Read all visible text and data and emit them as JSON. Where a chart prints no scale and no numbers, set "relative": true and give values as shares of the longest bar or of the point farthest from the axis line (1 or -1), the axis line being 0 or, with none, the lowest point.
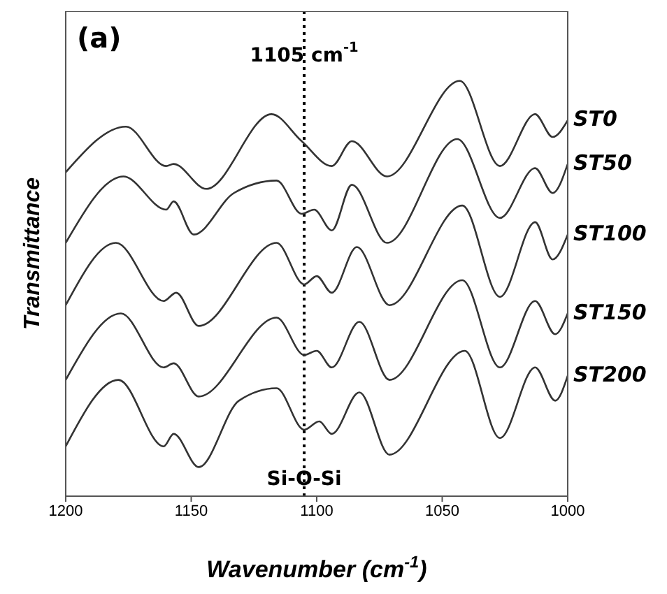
{
  "chart_data": {
    "type": "line",
    "title": "(a)",
    "xlabel": "Wavenumber (cm$^{-1}$)",
    "ylabel": "Transmittance",
    "relative": true,
    "tick_labels": "x",
    "xlim": [
      1200,
      1000
    ],
    "xticks": [
      1200,
      1150,
      1100,
      1050,
      1000
    ],
    "marker": "none",
    "line_style": "solid",
    "series": [
      {
        "name": "ST0",
        "color": "#333333",
        "x": [
          1200,
          1176,
          1160,
          1157,
          1144,
          1118,
          1106,
          1094,
          1086,
          1072,
          1043,
          1027,
          1013,
          1006,
          1000
        ],
        "values": [
          0.78,
          0.89,
          0.795,
          0.8,
          0.74,
          0.92,
          0.855,
          0.795,
          0.855,
          0.77,
          1.0,
          0.795,
          0.92,
          0.865,
          0.905
        ]
      },
      {
        "name": "ST50",
        "color": "#333333",
        "x": [
          1200,
          1177,
          1160,
          1157,
          1149,
          1133,
          1116,
          1106,
          1101,
          1094,
          1086,
          1072,
          1044,
          1027,
          1013,
          1006,
          1000
        ],
        "values": [
          0.61,
          0.77,
          0.69,
          0.71,
          0.63,
          0.73,
          0.76,
          0.68,
          0.69,
          0.64,
          0.75,
          0.61,
          0.86,
          0.67,
          0.79,
          0.73,
          0.8
        ]
      },
      {
        "name": "ST100",
        "color": "#333333",
        "x": [
          1200,
          1180,
          1161,
          1156,
          1147,
          1116,
          1105,
          1100,
          1094,
          1084,
          1071,
          1042,
          1027,
          1013,
          1006,
          1000
        ],
        "values": [
          0.46,
          0.61,
          0.47,
          0.49,
          0.41,
          0.61,
          0.51,
          0.53,
          0.49,
          0.6,
          0.46,
          0.7,
          0.48,
          0.66,
          0.57,
          0.63
        ]
      },
      {
        "name": "ST150",
        "color": "#333333",
        "x": [
          1200,
          1178,
          1161,
          1157,
          1147,
          1116,
          1105,
          1100,
          1094,
          1083,
          1071,
          1042,
          1027,
          1013,
          1005,
          1000
        ],
        "values": [
          0.28,
          0.44,
          0.31,
          0.32,
          0.24,
          0.43,
          0.34,
          0.35,
          0.31,
          0.42,
          0.28,
          0.52,
          0.31,
          0.47,
          0.39,
          0.44
        ]
      },
      {
        "name": "ST200",
        "color": "#333333",
        "x": [
          1200,
          1179,
          1161,
          1157,
          1147,
          1131,
          1116,
          1105,
          1099,
          1094,
          1083,
          1071,
          1041,
          1027,
          1013,
          1005,
          1000
        ],
        "values": [
          0.12,
          0.28,
          0.12,
          0.15,
          0.07,
          0.23,
          0.26,
          0.16,
          0.18,
          0.15,
          0.25,
          0.1,
          0.35,
          0.14,
          0.31,
          0.23,
          0.29
        ]
      }
    ],
    "ref_lines": [
      {
        "axis": "x",
        "value": 1105,
        "color": "#000000",
        "line_style": "dotted"
      }
    ],
    "annotations": [
      {
        "text": "1105 cm$^{-1}$",
        "x": 1105,
        "y": 1.06
      },
      {
        "text": "Si-O-Si",
        "x": 1105,
        "y": 0.04
      }
    ]
  }
}
